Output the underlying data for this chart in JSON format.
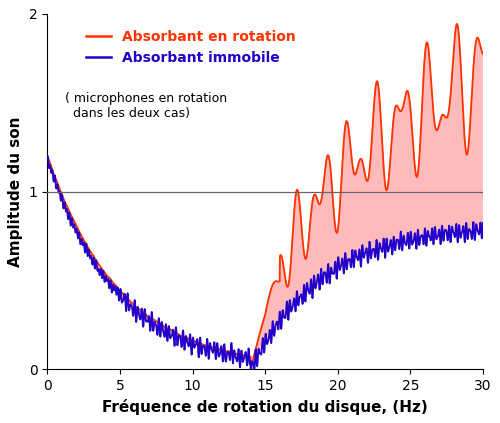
{
  "xlabel": "Fréquence de rotation du disque, (Hz)",
  "ylabel": "Amplitude du son",
  "xlim": [
    0,
    30
  ],
  "ylim": [
    0,
    2
  ],
  "yticks": [
    0,
    1,
    2
  ],
  "xticks": [
    0,
    5,
    10,
    15,
    20,
    25,
    30
  ],
  "hline_y": 1.0,
  "hline_color": "#666666",
  "red_color": "#FF3300",
  "blue_color": "#2200CC",
  "fill_color": "#FFBBBB",
  "legend_label_red": "Absorbant en rotation",
  "legend_label_blue": "Absorbant immobile",
  "annotation": "( microphones en rotation\n  dans les deux cas)",
  "label_fontsize": 11,
  "tick_fontsize": 10,
  "legend_fontsize": 10
}
